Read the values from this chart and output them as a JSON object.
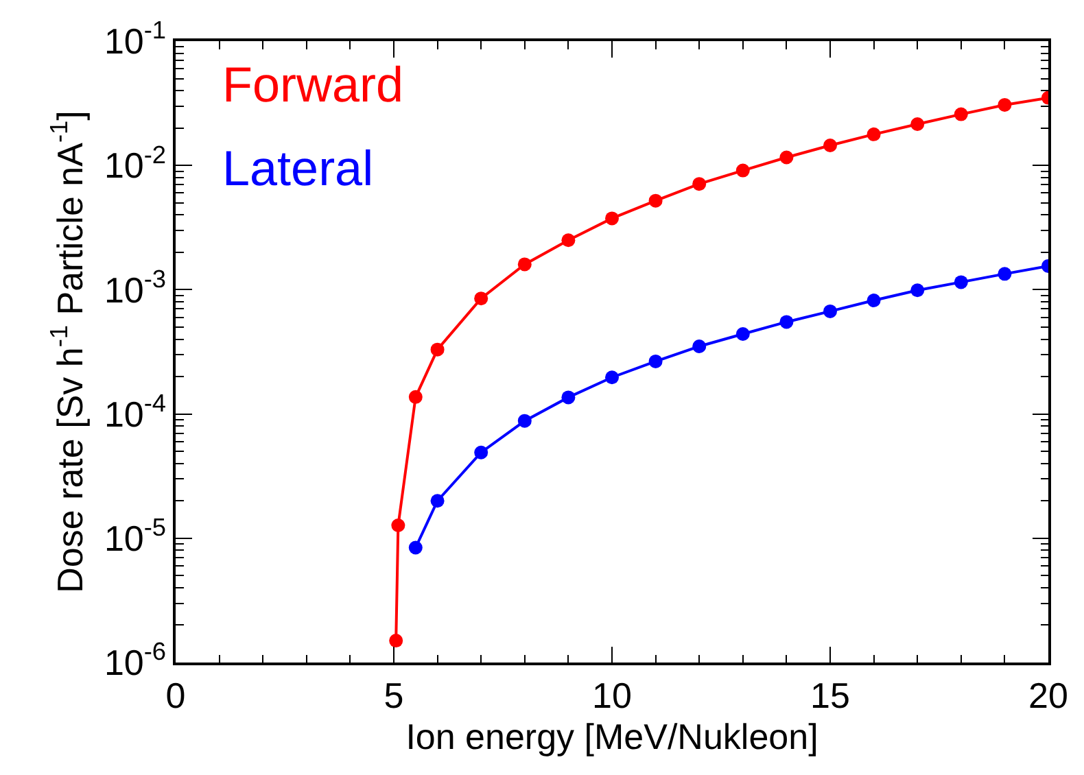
{
  "chart_data": {
    "type": "line",
    "xlabel": "Ion energy [MeV/Nukleon]",
    "ylabel": "Dose rate [Sv h$^{-1}$ Particle nA$^{-1}$]",
    "log": "y",
    "marker": "circle",
    "line_style": "solid",
    "legend": false,
    "xlim": [
      0,
      20
    ],
    "xticks": [
      0,
      5,
      10,
      15,
      20
    ],
    "ylim": [
      1e-06,
      0.1
    ],
    "yticks": [
      {
        "value": 1e-06,
        "label": "10$^{-6}$"
      },
      {
        "value": 1e-05,
        "label": "10$^{-5}$"
      },
      {
        "value": 0.0001,
        "label": "10$^{-4}$"
      },
      {
        "value": 0.001,
        "label": "10$^{-3}$"
      },
      {
        "value": 0.01,
        "label": "10$^{-2}$"
      },
      {
        "value": 0.1,
        "label": "10$^{-1}$"
      }
    ],
    "series": [
      {
        "name": "Forward",
        "color": "#ff0000",
        "x": [
          5.05,
          5.1,
          5.5,
          6,
          7,
          8,
          9,
          10,
          11,
          12,
          13,
          14,
          15,
          16,
          17,
          18,
          19,
          20
        ],
        "values": [
          1.5e-06,
          1.27e-05,
          0.000137,
          0.00033,
          0.00085,
          0.0016,
          0.0025,
          0.00375,
          0.0052,
          0.0071,
          0.0091,
          0.0116,
          0.0145,
          0.0178,
          0.0215,
          0.0258,
          0.0307,
          0.035
        ]
      },
      {
        "name": "Lateral",
        "color": "#0000ff",
        "x": [
          5.5,
          6,
          7,
          8,
          9,
          10,
          11,
          12,
          13,
          14,
          15,
          16,
          17,
          18,
          19,
          20
        ],
        "values": [
          8.4e-06,
          2e-05,
          4.9e-05,
          8.8e-05,
          0.000136,
          0.000197,
          0.000265,
          0.00035,
          0.00044,
          0.00055,
          0.00067,
          0.00082,
          0.00099,
          0.00115,
          0.00134,
          0.00155
        ]
      }
    ]
  }
}
